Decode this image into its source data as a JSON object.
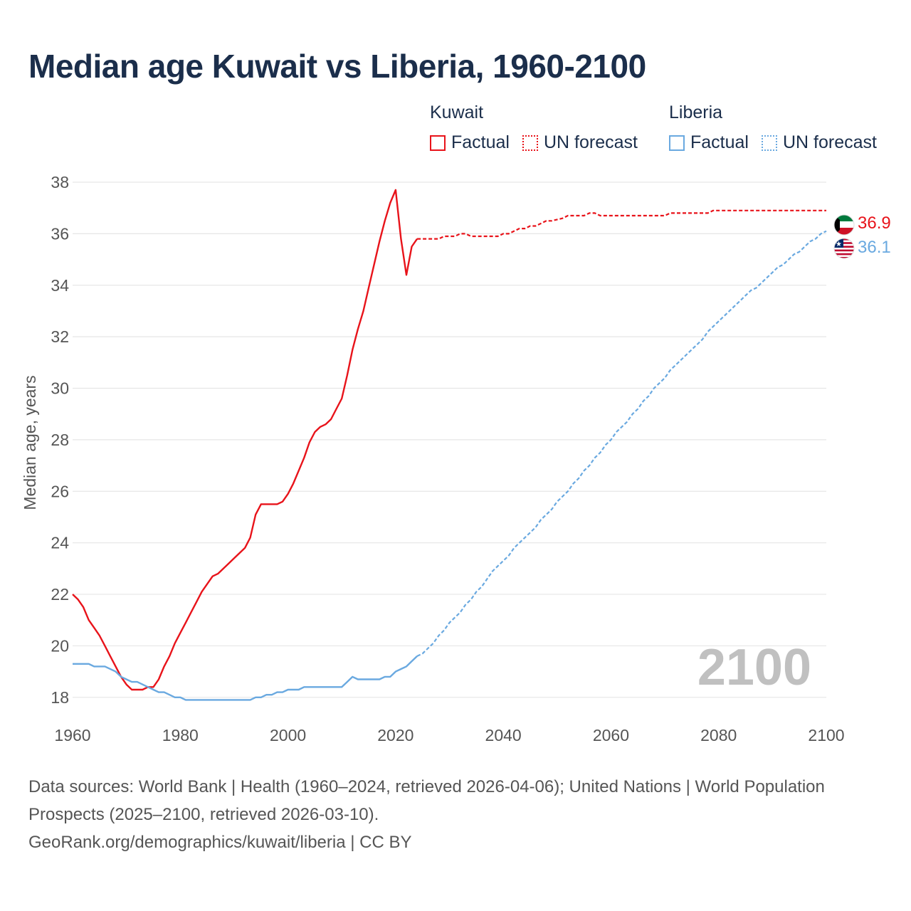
{
  "title": "Median age Kuwait vs Liberia, 1960-2100",
  "legend": {
    "groups": [
      {
        "name": "Kuwait",
        "factual": "Factual",
        "forecast": "UN forecast",
        "color": "#e8131a"
      },
      {
        "name": "Liberia",
        "factual": "Factual",
        "forecast": "UN forecast",
        "color": "#6aa9e0"
      }
    ]
  },
  "year_watermark": "2100",
  "footer": {
    "sources": "Data sources: World Bank | Health (1960–2024, retrieved 2026-04-06); United Nations | World Population Prospects (2025–2100, retrieved 2026-03-10).",
    "credit": "GeoRank.org/demographics/kuwait/liberia | CC BY"
  },
  "chart_data": {
    "type": "line",
    "title": "Median age Kuwait vs Liberia, 1960-2100",
    "xlabel": "",
    "ylabel": "Median age, years",
    "xlim": [
      1960,
      2100
    ],
    "ylim": [
      17,
      38
    ],
    "x_ticks": [
      1960,
      1980,
      2000,
      2020,
      2040,
      2060,
      2080,
      2100
    ],
    "y_ticks": [
      18,
      20,
      22,
      24,
      26,
      28,
      30,
      32,
      34,
      36,
      38
    ],
    "grid": true,
    "legend_position": "top-right",
    "series": [
      {
        "name": "Kuwait",
        "color": "#e8131a",
        "end_label": "36.9",
        "factual": [
          [
            1960,
            22.0
          ],
          [
            1961,
            21.8
          ],
          [
            1962,
            21.5
          ],
          [
            1963,
            21.0
          ],
          [
            1964,
            20.7
          ],
          [
            1965,
            20.4
          ],
          [
            1966,
            20.0
          ],
          [
            1967,
            19.6
          ],
          [
            1968,
            19.2
          ],
          [
            1969,
            18.8
          ],
          [
            1970,
            18.5
          ],
          [
            1971,
            18.3
          ],
          [
            1972,
            18.3
          ],
          [
            1973,
            18.3
          ],
          [
            1974,
            18.4
          ],
          [
            1975,
            18.4
          ],
          [
            1976,
            18.7
          ],
          [
            1977,
            19.2
          ],
          [
            1978,
            19.6
          ],
          [
            1979,
            20.1
          ],
          [
            1980,
            20.5
          ],
          [
            1981,
            20.9
          ],
          [
            1982,
            21.3
          ],
          [
            1983,
            21.7
          ],
          [
            1984,
            22.1
          ],
          [
            1985,
            22.4
          ],
          [
            1986,
            22.7
          ],
          [
            1987,
            22.8
          ],
          [
            1988,
            23.0
          ],
          [
            1989,
            23.2
          ],
          [
            1990,
            23.4
          ],
          [
            1991,
            23.6
          ],
          [
            1992,
            23.8
          ],
          [
            1993,
            24.2
          ],
          [
            1994,
            25.1
          ],
          [
            1995,
            25.5
          ],
          [
            1996,
            25.5
          ],
          [
            1997,
            25.5
          ],
          [
            1998,
            25.5
          ],
          [
            1999,
            25.6
          ],
          [
            2000,
            25.9
          ],
          [
            2001,
            26.3
          ],
          [
            2002,
            26.8
          ],
          [
            2003,
            27.3
          ],
          [
            2004,
            27.9
          ],
          [
            2005,
            28.3
          ],
          [
            2006,
            28.5
          ],
          [
            2007,
            28.6
          ],
          [
            2008,
            28.8
          ],
          [
            2009,
            29.2
          ],
          [
            2010,
            29.6
          ],
          [
            2011,
            30.5
          ],
          [
            2012,
            31.5
          ],
          [
            2013,
            32.3
          ],
          [
            2014,
            33.0
          ],
          [
            2015,
            33.9
          ],
          [
            2016,
            34.8
          ],
          [
            2017,
            35.7
          ],
          [
            2018,
            36.5
          ],
          [
            2019,
            37.2
          ],
          [
            2020,
            37.7
          ],
          [
            2021,
            35.8
          ],
          [
            2022,
            34.4
          ],
          [
            2023,
            35.5
          ],
          [
            2024,
            35.8
          ]
        ],
        "forecast": [
          [
            2024,
            35.8
          ],
          [
            2025,
            35.8
          ],
          [
            2028,
            35.8
          ],
          [
            2029,
            35.9
          ],
          [
            2031,
            35.9
          ],
          [
            2032,
            36.0
          ],
          [
            2033,
            36.0
          ],
          [
            2034,
            35.9
          ],
          [
            2039,
            35.9
          ],
          [
            2040,
            36.0
          ],
          [
            2041,
            36.0
          ],
          [
            2043,
            36.2
          ],
          [
            2044,
            36.2
          ],
          [
            2045,
            36.3
          ],
          [
            2046,
            36.3
          ],
          [
            2048,
            36.5
          ],
          [
            2049,
            36.5
          ],
          [
            2051,
            36.6
          ],
          [
            2052,
            36.7
          ],
          [
            2055,
            36.7
          ],
          [
            2056,
            36.8
          ],
          [
            2057,
            36.8
          ],
          [
            2058,
            36.7
          ],
          [
            2069,
            36.7
          ],
          [
            2070,
            36.7
          ],
          [
            2071,
            36.8
          ],
          [
            2078,
            36.8
          ],
          [
            2079,
            36.9
          ],
          [
            2099,
            36.9
          ],
          [
            2100,
            36.9
          ]
        ]
      },
      {
        "name": "Liberia",
        "color": "#6aa9e0",
        "end_label": "36.1",
        "factual": [
          [
            1960,
            19.3
          ],
          [
            1963,
            19.3
          ],
          [
            1964,
            19.2
          ],
          [
            1966,
            19.2
          ],
          [
            1968,
            19.0
          ],
          [
            1969,
            18.8
          ],
          [
            1970,
            18.7
          ],
          [
            1971,
            18.6
          ],
          [
            1972,
            18.6
          ],
          [
            1973,
            18.5
          ],
          [
            1974,
            18.4
          ],
          [
            1975,
            18.3
          ],
          [
            1976,
            18.2
          ],
          [
            1977,
            18.2
          ],
          [
            1978,
            18.1
          ],
          [
            1979,
            18.0
          ],
          [
            1980,
            18.0
          ],
          [
            1981,
            17.9
          ],
          [
            1993,
            17.9
          ],
          [
            1994,
            18.0
          ],
          [
            1995,
            18.0
          ],
          [
            1996,
            18.1
          ],
          [
            1997,
            18.1
          ],
          [
            1998,
            18.2
          ],
          [
            1999,
            18.2
          ],
          [
            2000,
            18.3
          ],
          [
            2002,
            18.3
          ],
          [
            2003,
            18.4
          ],
          [
            2010,
            18.4
          ],
          [
            2011,
            18.6
          ],
          [
            2012,
            18.8
          ],
          [
            2013,
            18.7
          ],
          [
            2017,
            18.7
          ],
          [
            2018,
            18.8
          ],
          [
            2019,
            18.8
          ],
          [
            2020,
            19.0
          ],
          [
            2021,
            19.1
          ],
          [
            2022,
            19.2
          ],
          [
            2023,
            19.4
          ],
          [
            2024,
            19.6
          ]
        ],
        "forecast": [
          [
            2024,
            19.6
          ],
          [
            2025,
            19.7
          ],
          [
            2026,
            19.9
          ],
          [
            2027,
            20.1
          ],
          [
            2028,
            20.4
          ],
          [
            2029,
            20.6
          ],
          [
            2030,
            20.9
          ],
          [
            2031,
            21.1
          ],
          [
            2032,
            21.3
          ],
          [
            2033,
            21.6
          ],
          [
            2034,
            21.8
          ],
          [
            2035,
            22.1
          ],
          [
            2036,
            22.3
          ],
          [
            2037,
            22.6
          ],
          [
            2038,
            22.9
          ],
          [
            2039,
            23.1
          ],
          [
            2040,
            23.3
          ],
          [
            2041,
            23.5
          ],
          [
            2042,
            23.8
          ],
          [
            2043,
            24.0
          ],
          [
            2044,
            24.2
          ],
          [
            2045,
            24.4
          ],
          [
            2046,
            24.6
          ],
          [
            2047,
            24.9
          ],
          [
            2048,
            25.1
          ],
          [
            2049,
            25.3
          ],
          [
            2050,
            25.6
          ],
          [
            2051,
            25.8
          ],
          [
            2052,
            26.0
          ],
          [
            2053,
            26.3
          ],
          [
            2054,
            26.5
          ],
          [
            2055,
            26.8
          ],
          [
            2056,
            27.0
          ],
          [
            2057,
            27.3
          ],
          [
            2058,
            27.5
          ],
          [
            2059,
            27.8
          ],
          [
            2060,
            28.0
          ],
          [
            2061,
            28.3
          ],
          [
            2062,
            28.5
          ],
          [
            2063,
            28.7
          ],
          [
            2064,
            29.0
          ],
          [
            2065,
            29.2
          ],
          [
            2066,
            29.5
          ],
          [
            2067,
            29.7
          ],
          [
            2068,
            30.0
          ],
          [
            2069,
            30.2
          ],
          [
            2070,
            30.4
          ],
          [
            2071,
            30.7
          ],
          [
            2072,
            30.9
          ],
          [
            2073,
            31.1
          ],
          [
            2074,
            31.3
          ],
          [
            2075,
            31.5
          ],
          [
            2076,
            31.7
          ],
          [
            2077,
            31.9
          ],
          [
            2078,
            32.2
          ],
          [
            2079,
            32.4
          ],
          [
            2080,
            32.6
          ],
          [
            2081,
            32.8
          ],
          [
            2082,
            33.0
          ],
          [
            2083,
            33.2
          ],
          [
            2084,
            33.4
          ],
          [
            2085,
            33.6
          ],
          [
            2086,
            33.8
          ],
          [
            2087,
            33.9
          ],
          [
            2088,
            34.1
          ],
          [
            2089,
            34.3
          ],
          [
            2090,
            34.5
          ],
          [
            2091,
            34.7
          ],
          [
            2092,
            34.8
          ],
          [
            2093,
            35.0
          ],
          [
            2094,
            35.2
          ],
          [
            2095,
            35.3
          ],
          [
            2096,
            35.5
          ],
          [
            2097,
            35.7
          ],
          [
            2098,
            35.8
          ],
          [
            2099,
            36.0
          ],
          [
            2100,
            36.1
          ]
        ]
      }
    ]
  }
}
